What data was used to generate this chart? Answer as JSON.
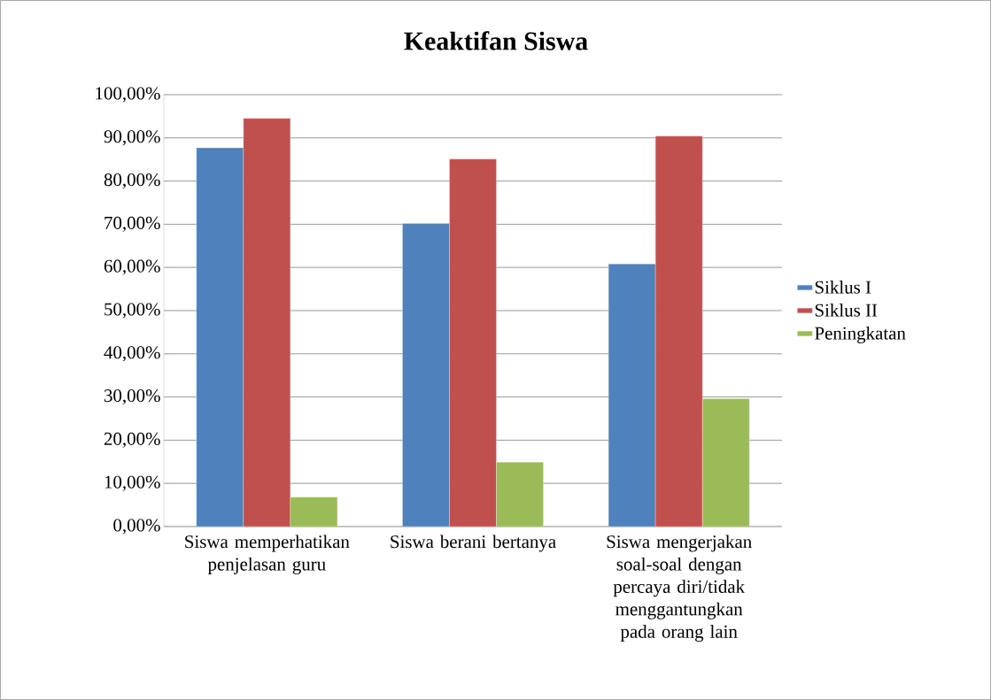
{
  "chart_data": {
    "type": "bar",
    "title": "Keaktifan Siswa",
    "categories": [
      "Siswa memperhatikan penjelasan guru",
      "Siswa berani bertanya",
      "Siswa mengerjakan soal-soal dengan percaya diri/tidak menggantungkan pada orang lain"
    ],
    "series": [
      {
        "name": "Siklus I",
        "color": "#4f81bd",
        "values": [
          87.7,
          70.2,
          60.8
        ]
      },
      {
        "name": "Siklus II",
        "color": "#c0504d",
        "values": [
          94.5,
          85.1,
          90.4
        ]
      },
      {
        "name": "Peningkatan",
        "color": "#9bbb59",
        "values": [
          6.8,
          14.9,
          29.6
        ]
      }
    ],
    "ylim": [
      0,
      100
    ],
    "yticks": [
      {
        "value": 0,
        "label": "0,00%"
      },
      {
        "value": 10,
        "label": "10,00%"
      },
      {
        "value": 20,
        "label": "20,00%"
      },
      {
        "value": 30,
        "label": "30,00%"
      },
      {
        "value": 40,
        "label": "40,00%"
      },
      {
        "value": 50,
        "label": "50,00%"
      },
      {
        "value": 60,
        "label": "60,00%"
      },
      {
        "value": 70,
        "label": "70,00%"
      },
      {
        "value": 80,
        "label": "80,00%"
      },
      {
        "value": 90,
        "label": "90,00%"
      },
      {
        "value": 100,
        "label": "100,00%"
      }
    ],
    "grid": "y",
    "legend": "right"
  }
}
